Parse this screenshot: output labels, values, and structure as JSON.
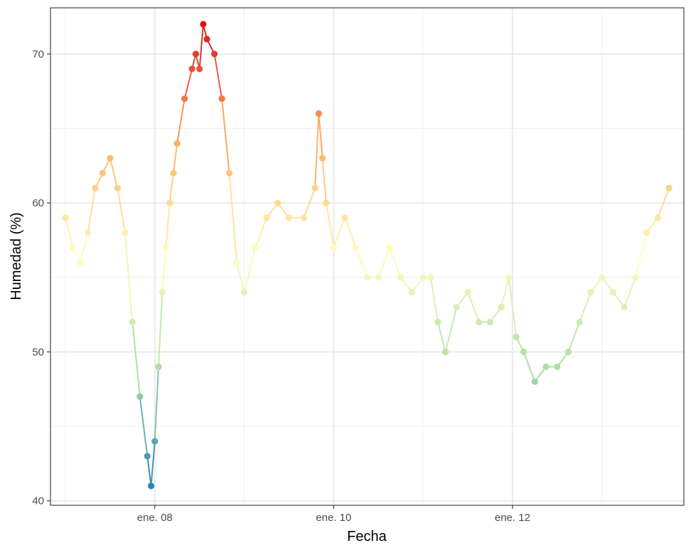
{
  "chart_data": {
    "type": "line",
    "title": "",
    "xlabel": "Fecha",
    "ylabel": "Humedad (%)",
    "x_unit": "hours",
    "x_ticks": [
      {
        "label": "ene. 08",
        "value": "2000-01-08"
      },
      {
        "label": "ene. 10",
        "value": "2000-01-10"
      },
      {
        "label": "ene. 12",
        "value": "2000-01-12"
      }
    ],
    "y_ticks": [
      40,
      50,
      60,
      70
    ],
    "xlim": [
      "2000-01-06 20:00",
      "2000-01-13 22:00"
    ],
    "ylim": [
      39.7,
      73.1
    ],
    "grid": true,
    "legend": "none",
    "color_scale": "Spectral (red = high humidity, blue = low humidity)",
    "color_stops": [
      "#2b83ba",
      "#abdda4",
      "#ffffbf",
      "#fdae61",
      "#d7191c"
    ],
    "x": [
      "2000-01-07 00:00",
      "2000-01-07 02:00",
      "2000-01-07 04:00",
      "2000-01-07 06:00",
      "2000-01-07 08:00",
      "2000-01-07 10:00",
      "2000-01-07 12:00",
      "2000-01-07 14:00",
      "2000-01-07 16:00",
      "2000-01-07 18:00",
      "2000-01-07 20:00",
      "2000-01-07 22:00",
      "2000-01-07 23:00",
      "2000-01-08 00:00",
      "2000-01-08 01:00",
      "2000-01-08 02:00",
      "2000-01-08 03:00",
      "2000-01-08 04:00",
      "2000-01-08 05:00",
      "2000-01-08 06:00",
      "2000-01-08 08:00",
      "2000-01-08 10:00",
      "2000-01-08 11:00",
      "2000-01-08 12:00",
      "2000-01-08 13:00",
      "2000-01-08 14:00",
      "2000-01-08 16:00",
      "2000-01-08 18:00",
      "2000-01-08 20:00",
      "2000-01-08 22:00",
      "2000-01-09 00:00",
      "2000-01-09 03:00",
      "2000-01-09 06:00",
      "2000-01-09 09:00",
      "2000-01-09 12:00",
      "2000-01-09 16:00",
      "2000-01-09 19:00",
      "2000-01-09 20:00",
      "2000-01-09 21:00",
      "2000-01-09 22:00",
      "2000-01-10 00:00",
      "2000-01-10 03:00",
      "2000-01-10 06:00",
      "2000-01-10 09:00",
      "2000-01-10 12:00",
      "2000-01-10 15:00",
      "2000-01-10 18:00",
      "2000-01-10 21:00",
      "2000-01-11 00:00",
      "2000-01-11 02:00",
      "2000-01-11 04:00",
      "2000-01-11 06:00",
      "2000-01-11 09:00",
      "2000-01-11 12:00",
      "2000-01-11 15:00",
      "2000-01-11 18:00",
      "2000-01-11 21:00",
      "2000-01-11 23:00",
      "2000-01-12 01:00",
      "2000-01-12 03:00",
      "2000-01-12 06:00",
      "2000-01-12 09:00",
      "2000-01-12 12:00",
      "2000-01-12 15:00",
      "2000-01-12 18:00",
      "2000-01-12 21:00",
      "2000-01-13 00:00",
      "2000-01-13 03:00",
      "2000-01-13 06:00",
      "2000-01-13 09:00",
      "2000-01-13 12:00",
      "2000-01-13 15:00",
      "2000-01-13 18:00"
    ],
    "series": [
      {
        "values": [
          59,
          57,
          56,
          58,
          61,
          62,
          63,
          61,
          58,
          52,
          47,
          43,
          41,
          44,
          49,
          54,
          57,
          60,
          62,
          64,
          67,
          69,
          70,
          69,
          72,
          71,
          70,
          67,
          62,
          56,
          54,
          57,
          59,
          60,
          59,
          59,
          61,
          66,
          63,
          60,
          57,
          59,
          57,
          55,
          55,
          57,
          55,
          54,
          55,
          55,
          52,
          50,
          53,
          54,
          52,
          52,
          53,
          55,
          51,
          50,
          48,
          49,
          49,
          50,
          52,
          54,
          55,
          54,
          53,
          55,
          58,
          59,
          61
        ]
      }
    ]
  }
}
